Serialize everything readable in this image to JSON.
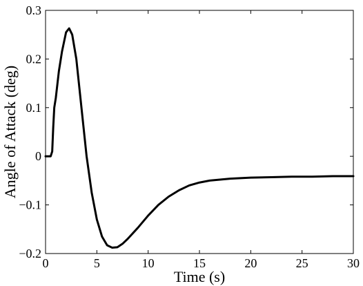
{
  "chart_data": {
    "type": "line",
    "title": "",
    "xlabel": "Time (s)",
    "ylabel": "Angle of Attack (deg)",
    "xlim": [
      0,
      30
    ],
    "ylim": [
      -0.2,
      0.3
    ],
    "xticks": [
      0,
      5,
      10,
      15,
      20,
      25,
      30
    ],
    "xtick_labels": [
      "0",
      "5",
      "10",
      "15",
      "20",
      "25",
      "30"
    ],
    "yticks": [
      -0.2,
      -0.1,
      0,
      0.1,
      0.2,
      0.3
    ],
    "ytick_labels": [
      "−0.2",
      "−0.1",
      "0",
      "0.1",
      "0.2",
      "0.3"
    ],
    "grid": false,
    "series": [
      {
        "color": "#000000",
        "x": [
          0,
          0.5,
          0.65,
          0.75,
          0.85,
          1.0,
          1.3,
          1.6,
          2.0,
          2.3,
          2.6,
          3.0,
          3.5,
          4.0,
          4.5,
          5.0,
          5.5,
          6.0,
          6.5,
          7.0,
          7.5,
          8.0,
          9.0,
          10.0,
          11.0,
          12.0,
          13.0,
          14.0,
          15.0,
          16.0,
          17.0,
          18.0,
          19.0,
          20.0,
          22.0,
          24.0,
          26.0,
          28.0,
          30.0
        ],
        "y": [
          0,
          0,
          0.01,
          0.06,
          0.1,
          0.12,
          0.175,
          0.215,
          0.255,
          0.263,
          0.25,
          0.2,
          0.1,
          0.0,
          -0.075,
          -0.13,
          -0.165,
          -0.183,
          -0.188,
          -0.187,
          -0.18,
          -0.17,
          -0.147,
          -0.122,
          -0.1,
          -0.083,
          -0.07,
          -0.06,
          -0.054,
          -0.05,
          -0.048,
          -0.046,
          -0.045,
          -0.044,
          -0.043,
          -0.042,
          -0.042,
          -0.041,
          -0.041
        ]
      }
    ]
  }
}
